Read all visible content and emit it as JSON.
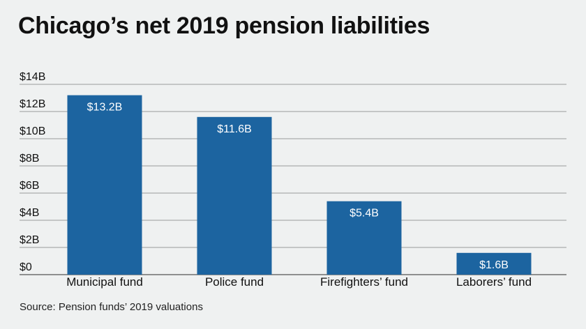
{
  "title": "Chicago’s net 2019 pension liabilities",
  "source": "Source: Pension funds’ 2019 valuations",
  "colors": {
    "bar": "#1c64a0",
    "grid": "#9a9a9a",
    "background": "#eff1f1"
  },
  "chart_data": {
    "type": "bar",
    "categories": [
      "Municipal fund",
      "Police fund",
      "Firefighters’ fund",
      "Laborers’ fund"
    ],
    "values": [
      13.2,
      11.6,
      5.4,
      1.6
    ],
    "data_labels": [
      "$13.2B",
      "$11.6B",
      "$5.4B",
      "$1.6B"
    ],
    "title": "Chicago’s net 2019 pension liabilities",
    "xlabel": "",
    "ylabel": "",
    "ylim": [
      0,
      14
    ],
    "yticks": [
      0,
      2,
      4,
      6,
      8,
      10,
      12,
      14
    ],
    "ytick_labels": [
      "$0",
      "$2B",
      "$4B",
      "$6B",
      "$8B",
      "$10B",
      "$12B",
      "$14B"
    ],
    "grid": true,
    "legend": "none"
  }
}
